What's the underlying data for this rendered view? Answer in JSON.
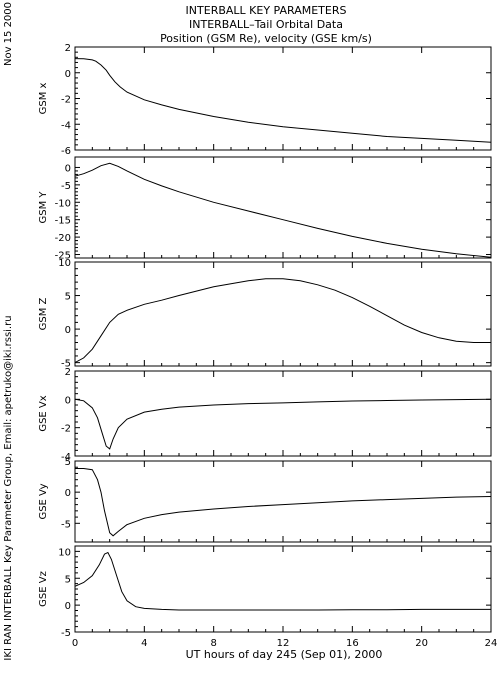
{
  "header": {
    "line1": "INTERBALL KEY PARAMETERS",
    "line2": "INTERBALL–Tail Orbital Data",
    "line3": "Position (GSM Re), velocity (GSE km/s)"
  },
  "side_date": "Nov 15 2000",
  "side_credit": "IKI RAN INTERBALL Key Parameter Group, Email: apetruko@iki.rssi.ru",
  "colors": {
    "line": "#000000",
    "background": "#ffffff"
  },
  "chart_data": {
    "type": "line",
    "xlabel": "UT hours of day 245 (Sep 01), 2000",
    "xlim": [
      0,
      24
    ],
    "xticks": [
      0,
      4,
      8,
      12,
      16,
      20,
      24
    ],
    "xtick_labels": [
      "0",
      "4",
      "8",
      "12",
      "16",
      "20",
      "24"
    ],
    "grid": false,
    "panels": [
      {
        "ylabel": "GSM x",
        "ylim": [
          -6,
          2
        ],
        "yticks": [
          -6,
          -4,
          -2,
          0,
          2
        ],
        "ytick_labels": [
          "-6",
          "-4",
          "-2",
          "0",
          "2"
        ],
        "x": [
          0,
          0.5,
          1.0,
          1.2,
          1.5,
          1.8,
          2.0,
          2.3,
          2.6,
          3,
          4,
          5,
          6,
          8,
          10,
          12,
          14,
          16,
          18,
          20,
          22,
          24
        ],
        "values": [
          1.1,
          1.08,
          1.0,
          0.9,
          0.6,
          0.2,
          -0.2,
          -0.7,
          -1.1,
          -1.5,
          -2.1,
          -2.5,
          -2.85,
          -3.4,
          -3.85,
          -4.2,
          -4.45,
          -4.7,
          -4.95,
          -5.1,
          -5.25,
          -5.4
        ]
      },
      {
        "ylabel": "GSM Y",
        "ylim": [
          -26,
          3
        ],
        "yticks": [
          -25,
          -20,
          -15,
          -10,
          -5,
          0
        ],
        "ytick_labels": [
          "-25",
          "-20",
          "-15",
          "-10",
          "-5",
          "0"
        ],
        "x": [
          0,
          0.5,
          1.0,
          1.5,
          2.0,
          2.5,
          3,
          4,
          5,
          6,
          8,
          10,
          12,
          14,
          16,
          18,
          20,
          22,
          24
        ],
        "values": [
          -2.5,
          -1.8,
          -0.8,
          0.5,
          1.2,
          0.3,
          -1.0,
          -3.4,
          -5.3,
          -7.0,
          -10.0,
          -12.5,
          -15.0,
          -17.5,
          -19.8,
          -21.8,
          -23.5,
          -24.8,
          -25.8
        ]
      },
      {
        "ylabel": "GSM Z",
        "ylim": [
          -5.5,
          10
        ],
        "yticks": [
          -5,
          0,
          5,
          10
        ],
        "ytick_labels": [
          "-5",
          "0",
          "5",
          "10"
        ],
        "x": [
          0,
          0.5,
          1.0,
          1.5,
          2.0,
          2.5,
          3,
          4,
          5,
          6,
          8,
          10,
          11,
          12,
          13,
          14,
          15,
          16,
          17,
          18,
          19,
          20,
          21,
          22,
          23,
          24
        ],
        "values": [
          -5.0,
          -4.3,
          -3.0,
          -1.0,
          1.0,
          2.2,
          2.8,
          3.7,
          4.3,
          5.0,
          6.3,
          7.2,
          7.5,
          7.5,
          7.2,
          6.6,
          5.8,
          4.7,
          3.4,
          2.0,
          0.6,
          -0.5,
          -1.3,
          -1.8,
          -2.0,
          -2.0
        ]
      },
      {
        "ylabel": "GSE Vx",
        "ylim": [
          -4,
          2
        ],
        "yticks": [
          -4,
          -2,
          0,
          2
        ],
        "ytick_labels": [
          "-4",
          "-2",
          "0",
          "2"
        ],
        "x": [
          0,
          0.5,
          1.0,
          1.3,
          1.6,
          1.8,
          2.0,
          2.2,
          2.5,
          3.0,
          4,
          5,
          6,
          8,
          10,
          12,
          14,
          16,
          18,
          20,
          22,
          24
        ],
        "values": [
          0,
          -0.1,
          -0.6,
          -1.3,
          -2.5,
          -3.3,
          -3.5,
          -2.8,
          -2.0,
          -1.4,
          -0.9,
          -0.7,
          -0.55,
          -0.4,
          -0.3,
          -0.25,
          -0.18,
          -0.12,
          -0.08,
          -0.05,
          -0.02,
          0.0
        ]
      },
      {
        "ylabel": "GSE Vy",
        "ylim": [
          -8,
          5
        ],
        "yticks": [
          -5,
          0,
          5
        ],
        "ytick_labels": [
          "-5",
          "0",
          "5"
        ],
        "x": [
          0,
          0.5,
          1.0,
          1.3,
          1.5,
          1.7,
          2.0,
          2.2,
          2.5,
          3.0,
          4,
          5,
          6,
          8,
          10,
          12,
          14,
          16,
          18,
          20,
          22,
          24
        ],
        "values": [
          3.8,
          3.8,
          3.6,
          2.0,
          0.0,
          -3.0,
          -6.5,
          -7.0,
          -6.3,
          -5.2,
          -4.2,
          -3.6,
          -3.2,
          -2.7,
          -2.3,
          -2.0,
          -1.7,
          -1.4,
          -1.2,
          -1.0,
          -0.8,
          -0.7
        ]
      },
      {
        "ylabel": "GSE Vz",
        "ylim": [
          -5,
          11
        ],
        "yticks": [
          -5,
          0,
          5,
          10
        ],
        "ytick_labels": [
          "-5",
          "0",
          "5",
          "10"
        ],
        "x": [
          0,
          0.5,
          1.0,
          1.4,
          1.7,
          1.9,
          2.1,
          2.4,
          2.7,
          3.0,
          3.5,
          4,
          5,
          6,
          8,
          10,
          12,
          14,
          16,
          18,
          20,
          22,
          24
        ],
        "values": [
          3.5,
          4.2,
          5.5,
          7.5,
          9.5,
          9.8,
          8.5,
          5.5,
          2.5,
          0.8,
          -0.3,
          -0.6,
          -0.8,
          -0.9,
          -0.9,
          -0.9,
          -0.9,
          -0.9,
          -0.85,
          -0.85,
          -0.8,
          -0.8,
          -0.8
        ]
      }
    ]
  }
}
